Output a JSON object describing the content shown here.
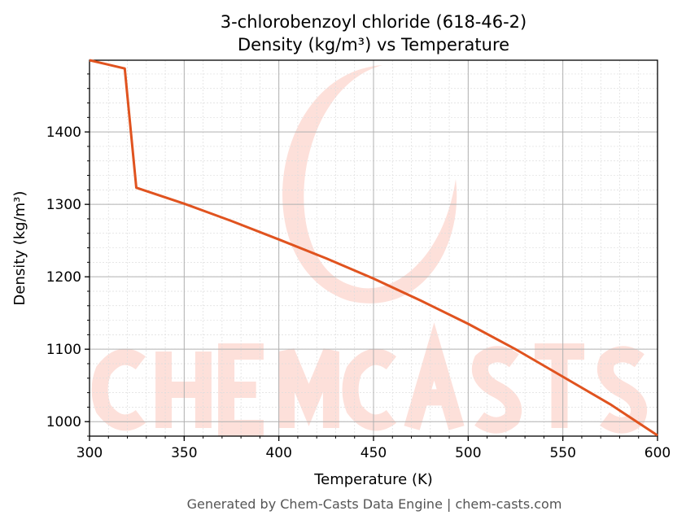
{
  "chart_data": {
    "type": "line",
    "title": "3-chlorobenzoyl chloride (618-46-2)",
    "subtitle": "Density (kg/m³) vs Temperature",
    "xlabel": "Temperature (K)",
    "ylabel": "Density (kg/m³)",
    "xlim": [
      300,
      600
    ],
    "ylim": [
      980,
      1499
    ],
    "xticks": [
      300,
      350,
      400,
      450,
      500,
      550,
      600
    ],
    "yticks": [
      1000,
      1100,
      1200,
      1300,
      1400
    ],
    "grid": true,
    "line_color": "#e0531f",
    "series": [
      {
        "x": [
          300,
          318.6,
          324.7,
          350,
          375,
          400,
          425,
          450,
          475,
          500,
          525,
          550,
          575,
          600
        ],
        "y": [
          1499,
          1487.5,
          1323,
          1301,
          1277,
          1251.5,
          1225.5,
          1197.5,
          1167,
          1135,
          1100,
          1062,
          1024,
          981
        ]
      }
    ]
  },
  "watermark": {
    "text": "CHEMCASTS",
    "color": "#fde0da"
  },
  "footer": "Generated by Chem-Casts Data Engine | chem-casts.com"
}
